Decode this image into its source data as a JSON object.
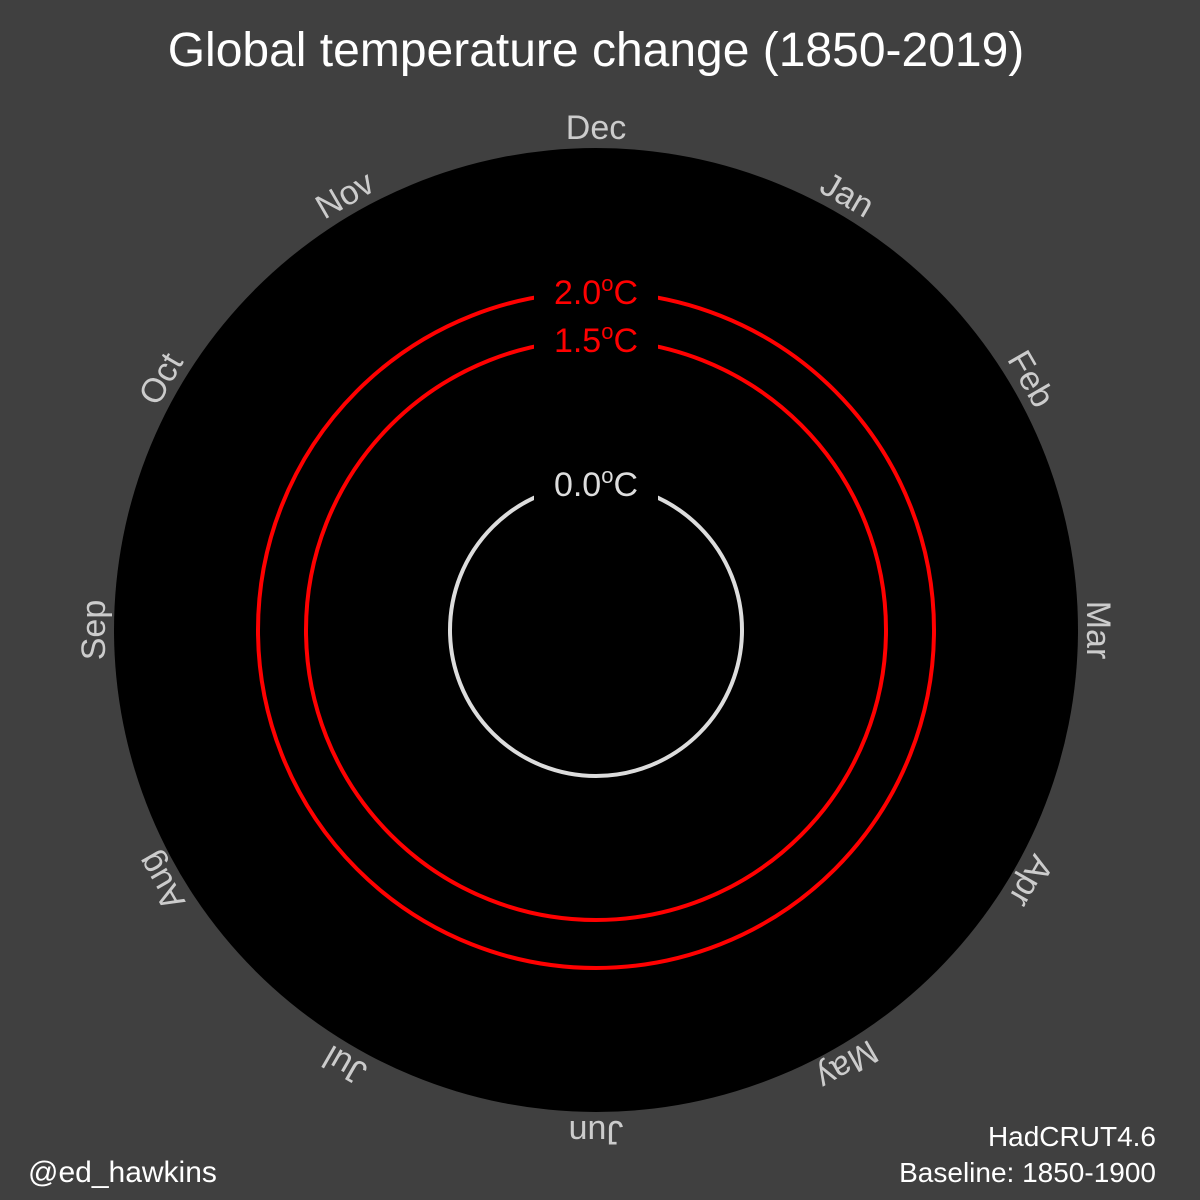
{
  "chart_data": {
    "type": "polar-line",
    "title": "Global temperature change (1850-2019)",
    "months": [
      "Dec",
      "Jan",
      "Feb",
      "Mar",
      "Apr",
      "May",
      "Jun",
      "Jul",
      "Aug",
      "Sep",
      "Oct",
      "Nov"
    ],
    "reference_rings": [
      {
        "value": 0.0,
        "label": "0.0",
        "unit": "C",
        "color": "#dddddd"
      },
      {
        "value": 1.5,
        "label": "1.5",
        "unit": "C",
        "color": "#ff0000"
      },
      {
        "value": 2.0,
        "label": "2.0",
        "unit": "C",
        "color": "#ff0000"
      }
    ],
    "series": [],
    "background_color": "#404040",
    "plot_color": "#000000",
    "label_color": "#cccccc"
  },
  "footer": {
    "credit": "@ed_hawkins",
    "dataset": "HadCRUT4.6",
    "baseline": "Baseline: 1850-1900"
  }
}
